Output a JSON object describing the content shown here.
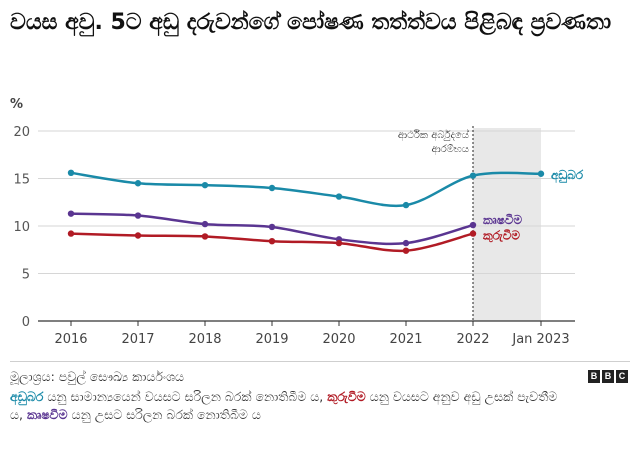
{
  "title": "වයස අවු. 5ට අඩු දරුවන්ගේ පෝෂණ තත්ත්වය පිළිබඳ ප්‍රවණතා",
  "unit": "%",
  "source": "මූලාශ්‍රය: පවුල් සෞඛ්‍ය කාර්යංශය",
  "note": {
    "term1": "අඩුබර",
    "text1": " යනු සාමාන්‍යයෙන් වයසට සරිලන බරක් නොතිබීම ය, ",
    "term2": "කුරුවීම",
    "text2": " යනු වයසට අනුව අඩු උසක් පැවතීම ය, ",
    "term3": "කෘෂවීම",
    "text3": " යනු උසට සරිලන බරක් නොතිබීම ය"
  },
  "logo": [
    "B",
    "B",
    "C"
  ],
  "colors": {
    "underweight": "#1a8aa8",
    "wasting": "#5a3591",
    "stunting": "#b11b25",
    "shade": "#e8e8e8"
  },
  "chart_data": {
    "type": "line",
    "x": [
      2016,
      2017,
      2018,
      2019,
      2020,
      2021,
      2022,
      2023
    ],
    "xticks": [
      {
        "x": 2016,
        "label": "2016"
      },
      {
        "x": 2017,
        "label": "2017"
      },
      {
        "x": 2018,
        "label": "2018"
      },
      {
        "x": 2019,
        "label": "2019"
      },
      {
        "x": 2020,
        "label": "2020"
      },
      {
        "x": 2021,
        "label": "2021"
      },
      {
        "x": 2022,
        "label": "2022"
      },
      {
        "x": 2023,
        "label": "Jan 2023"
      }
    ],
    "ylim": [
      0,
      20
    ],
    "yticks": [
      0,
      5,
      10,
      15,
      20
    ],
    "grid": true,
    "shaded_region": [
      2022,
      2023
    ],
    "annotation": {
      "x": 2022,
      "lines": [
        "ආර්ථික අර්බුදයේ",
        "ආරම්භය"
      ]
    },
    "series": [
      {
        "key": "underweight",
        "name": "අඩුබර",
        "x": [
          2016,
          2017,
          2018,
          2019,
          2020,
          2021,
          2022,
          2023
        ],
        "values": [
          15.6,
          14.5,
          14.3,
          14.0,
          13.1,
          12.2,
          15.3,
          15.5
        ]
      },
      {
        "key": "wasting",
        "name": "කෘෂවීම",
        "x": [
          2016,
          2017,
          2018,
          2019,
          2020,
          2021,
          2022
        ],
        "values": [
          11.3,
          11.1,
          10.2,
          9.9,
          8.6,
          8.2,
          10.1
        ]
      },
      {
        "key": "stunting",
        "name": "කුරුවීම",
        "x": [
          2016,
          2017,
          2018,
          2019,
          2020,
          2021,
          2022
        ],
        "values": [
          9.2,
          9.0,
          8.9,
          8.4,
          8.2,
          7.4,
          9.2
        ]
      }
    ]
  }
}
